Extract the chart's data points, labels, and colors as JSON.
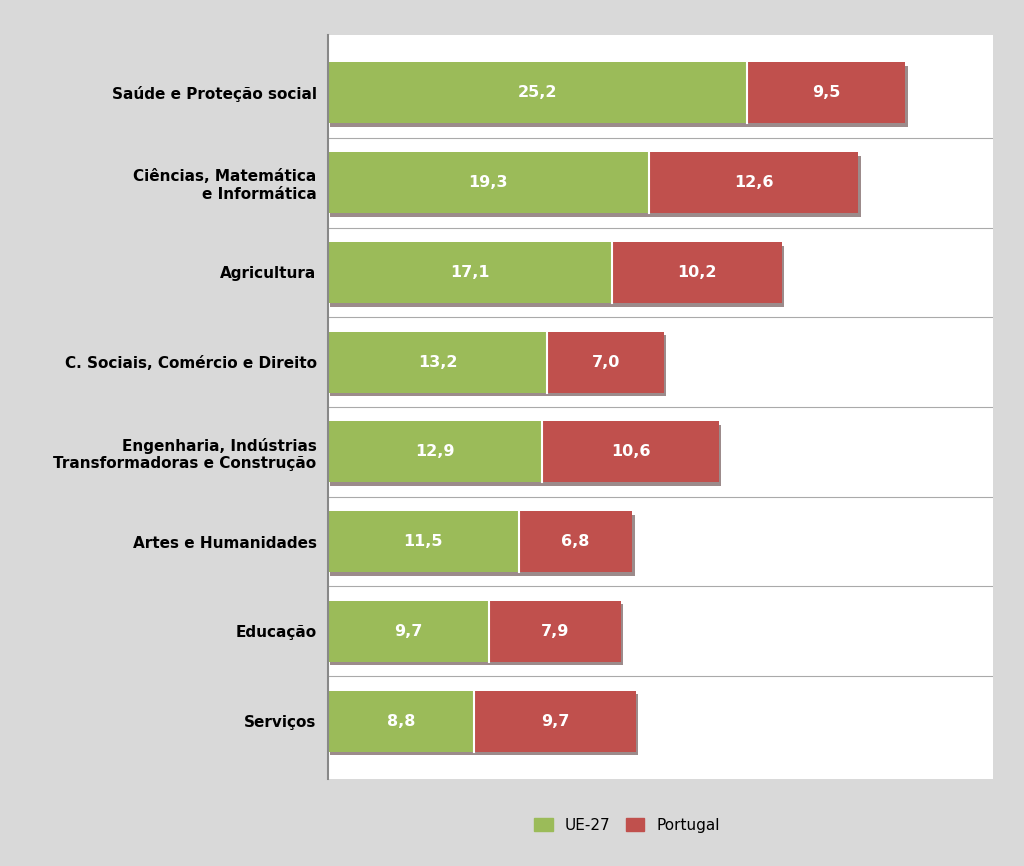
{
  "categories": [
    "Saúde e Proteção social",
    "Ciências, Matemática\ne Informática",
    "Agricultura",
    "C. Sociais, Comércio e Direito",
    "Engenharia, Indústrias\nTransformadoras e Construção",
    "Artes e Humanidades",
    "Educação",
    "Serviços"
  ],
  "ue27_values": [
    25.2,
    19.3,
    17.1,
    13.2,
    12.9,
    11.5,
    9.7,
    8.8
  ],
  "pt_values": [
    9.5,
    12.6,
    10.2,
    7.0,
    10.6,
    6.8,
    7.9,
    9.7
  ],
  "ue27_color": "#9BBB59",
  "pt_color": "#C0504D",
  "bg_color": "#FFFFFF",
  "outer_bg_color": "#D9D9D9",
  "bar_edge_color": "#7F7F7F",
  "shadow_color": "#5A3E3E",
  "separator_color": "#AAAAAA",
  "axis_line_color": "#888888",
  "legend_ue27": "UE-27",
  "legend_pt": "Portugal",
  "label_fontsize": 11.5,
  "tick_fontsize": 11,
  "legend_fontsize": 11,
  "bar_height": 0.68,
  "xlim_max": 40.0,
  "figsize": [
    10.24,
    8.66
  ],
  "dpi": 100
}
